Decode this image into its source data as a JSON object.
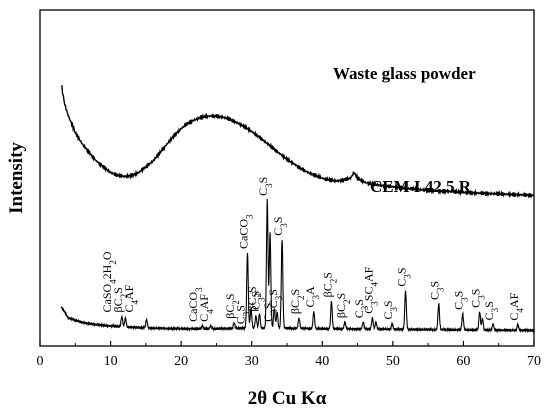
{
  "chart_data": {
    "type": "line",
    "xlabel": "2θ Cu Kα",
    "ylabel": "Intensity",
    "xlim": [
      0,
      70
    ],
    "xticks": [
      "0",
      "10",
      "20",
      "30",
      "40",
      "50",
      "60",
      "70"
    ],
    "y_tick_labels": "none",
    "colors": {
      "line": "#000000",
      "axis": "#000000",
      "background": "#ffffff"
    },
    "series": [
      {
        "name": "Waste glass powder",
        "profile": "amorphous hump",
        "x": [
          3,
          3.5,
          4,
          5,
          6,
          7,
          8,
          9,
          10,
          11,
          12,
          13,
          14,
          15,
          16,
          17,
          18,
          19,
          20,
          21,
          22,
          23,
          24,
          25,
          26,
          27,
          28,
          29,
          30,
          31,
          32,
          33,
          34,
          35,
          36,
          37,
          38,
          39,
          40,
          41,
          42,
          43,
          44,
          44.5,
          45,
          46,
          47,
          48,
          50,
          52,
          54,
          56,
          58,
          60,
          62,
          64,
          66,
          68,
          70
        ],
        "y": [
          4.4,
          4.05,
          3.85,
          3.55,
          3.35,
          3.2,
          3.05,
          2.95,
          2.85,
          2.8,
          2.78,
          2.8,
          2.85,
          2.95,
          3.05,
          3.2,
          3.35,
          3.5,
          3.62,
          3.72,
          3.78,
          3.82,
          3.84,
          3.84,
          3.82,
          3.78,
          3.72,
          3.65,
          3.57,
          3.48,
          3.38,
          3.28,
          3.18,
          3.08,
          3.0,
          2.92,
          2.85,
          2.8,
          2.75,
          2.72,
          2.7,
          2.72,
          2.75,
          2.85,
          2.75,
          2.68,
          2.65,
          2.63,
          2.6,
          2.57,
          2.55,
          2.53,
          2.52,
          2.5,
          2.49,
          2.48,
          2.47,
          2.46,
          2.45
        ]
      },
      {
        "name": "CEM I 42.5 R",
        "profile": "baseline with diffraction peaks",
        "baseline_x": [
          3,
          4,
          6,
          8,
          10,
          12,
          14,
          16,
          20,
          25,
          30,
          35,
          40,
          50,
          60,
          70
        ],
        "baseline_y": [
          0.5,
          0.3,
          0.22,
          0.18,
          0.16,
          0.14,
          0.13,
          0.12,
          0.11,
          0.11,
          0.12,
          0.12,
          0.11,
          0.1,
          0.09,
          0.08
        ],
        "peaks": [
          {
            "x": 11.6,
            "height": 0.18
          },
          {
            "x": 12.1,
            "height": 0.16
          },
          {
            "x": 15.1,
            "height": 0.15
          },
          {
            "x": 23.0,
            "height": 0.05
          },
          {
            "x": 24.2,
            "height": 0.05
          },
          {
            "x": 27.5,
            "height": 0.1
          },
          {
            "x": 29.4,
            "height": 1.32
          },
          {
            "x": 29.9,
            "height": 0.35
          },
          {
            "x": 30.6,
            "height": 0.22
          },
          {
            "x": 31.1,
            "height": 0.25
          },
          {
            "x": 32.2,
            "height": 2.25
          },
          {
            "x": 32.6,
            "height": 1.68
          },
          {
            "x": 33.2,
            "height": 0.35
          },
          {
            "x": 33.6,
            "height": 0.28
          },
          {
            "x": 34.3,
            "height": 1.55
          },
          {
            "x": 36.7,
            "height": 0.18
          },
          {
            "x": 38.8,
            "height": 0.3
          },
          {
            "x": 41.3,
            "height": 0.48
          },
          {
            "x": 43.2,
            "height": 0.12
          },
          {
            "x": 45.8,
            "height": 0.12
          },
          {
            "x": 47.1,
            "height": 0.2
          },
          {
            "x": 47.6,
            "height": 0.12
          },
          {
            "x": 49.9,
            "height": 0.1
          },
          {
            "x": 51.8,
            "height": 0.68
          },
          {
            "x": 56.5,
            "height": 0.45
          },
          {
            "x": 59.9,
            "height": 0.28
          },
          {
            "x": 62.3,
            "height": 0.32
          },
          {
            "x": 62.7,
            "height": 0.2
          },
          {
            "x": 64.2,
            "height": 0.1
          },
          {
            "x": 67.7,
            "height": 0.1
          }
        ]
      }
    ],
    "peak_annotations": [
      {
        "at": 11.6,
        "lines": [
          {
            "segs": [
              [
                "CaSO"
              ],
              [
                "4",
                "sub"
              ],
              [
                "2H"
              ],
              [
                "2",
                "sub"
              ],
              [
                "O"
              ]
            ]
          },
          {
            "segs": [
              [
                "βC"
              ],
              [
                "2",
                "sub"
              ],
              [
                "S"
              ]
            ]
          },
          {
            "segs": [
              [
                "C"
              ],
              [
                "4",
                "sub"
              ],
              [
                "AF"
              ]
            ]
          }
        ]
      },
      {
        "at": 23.0,
        "lines": [
          {
            "segs": [
              [
                "CaCO"
              ],
              [
                "3",
                "sub"
              ]
            ]
          },
          {
            "segs": [
              [
                "C"
              ],
              [
                "4",
                "sub"
              ],
              [
                "AF"
              ]
            ]
          }
        ]
      },
      {
        "at": 27.5,
        "lines": [
          {
            "segs": [
              [
                "βC"
              ],
              [
                "2",
                "sub"
              ],
              [
                "S"
              ]
            ]
          }
        ]
      },
      {
        "at": 29.0,
        "lines": [
          {
            "segs": [
              [
                "C"
              ],
              [
                "3",
                "sub"
              ],
              [
                "S"
              ]
            ]
          }
        ]
      },
      {
        "at": 29.4,
        "lines": [
          {
            "segs": [
              [
                "CaCO"
              ],
              [
                "3",
                "sub"
              ]
            ]
          }
        ]
      },
      {
        "at": 30.6,
        "lines": [
          {
            "segs": [
              [
                "βC"
              ],
              [
                "2",
                "sub"
              ],
              [
                "S"
              ]
            ]
          }
        ]
      },
      {
        "at": 31.1,
        "lines": [
          {
            "segs": [
              [
                "C"
              ],
              [
                "3",
                "sub"
              ],
              [
                "S"
              ]
            ]
          }
        ]
      },
      {
        "at": 32.2,
        "lines": [
          {
            "segs": [
              [
                "C"
              ],
              [
                "3",
                "sub"
              ],
              [
                "S"
              ]
            ]
          }
        ]
      },
      {
        "at": 32.9,
        "lines": [
          {
            "segs": [
              [
                "C"
              ],
              [
                "3",
                "sub"
              ],
              [
                "S"
              ]
            ]
          }
        ]
      },
      {
        "at": 33.6,
        "lines": [
          {
            "segs": [
              [
                "C"
              ],
              [
                "3",
                "sub"
              ],
              [
                "S"
              ]
            ]
          }
        ]
      },
      {
        "at": 34.3,
        "lines": [
          {
            "segs": [
              [
                "C"
              ],
              [
                "3",
                "sub"
              ],
              [
                "S"
              ]
            ]
          }
        ]
      },
      {
        "at": 36.7,
        "lines": [
          {
            "segs": [
              [
                "βC"
              ],
              [
                "2",
                "sub"
              ],
              [
                "S"
              ]
            ]
          }
        ]
      },
      {
        "at": 38.8,
        "lines": [
          {
            "segs": [
              [
                "C"
              ],
              [
                "3",
                "sub"
              ],
              [
                "A"
              ]
            ]
          }
        ]
      },
      {
        "at": 41.3,
        "lines": [
          {
            "segs": [
              [
                "βC"
              ],
              [
                "2",
                "sub"
              ],
              [
                "S"
              ]
            ]
          }
        ]
      },
      {
        "at": 43.2,
        "lines": [
          {
            "segs": [
              [
                "βC"
              ],
              [
                "2",
                "sub"
              ],
              [
                "S"
              ]
            ]
          }
        ]
      },
      {
        "at": 45.8,
        "lines": [
          {
            "segs": [
              [
                "C"
              ],
              [
                "3",
                "sub"
              ],
              [
                "S"
              ]
            ]
          }
        ]
      },
      {
        "at": 47.1,
        "lines": [
          {
            "segs": [
              [
                "C"
              ],
              [
                "3",
                "sub"
              ],
              [
                "S"
              ],
              [
                "C"
              ],
              [
                "4",
                "sub"
              ],
              [
                "AF"
              ]
            ]
          }
        ]
      },
      {
        "at": 49.9,
        "lines": [
          {
            "segs": [
              [
                "C"
              ],
              [
                "3",
                "sub"
              ],
              [
                "S"
              ]
            ]
          }
        ]
      },
      {
        "at": 51.8,
        "lines": [
          {
            "segs": [
              [
                "C"
              ],
              [
                "3",
                "sub"
              ],
              [
                "S"
              ]
            ]
          }
        ]
      },
      {
        "at": 56.5,
        "lines": [
          {
            "segs": [
              [
                "C"
              ],
              [
                "3",
                "sub"
              ],
              [
                "S"
              ]
            ]
          }
        ]
      },
      {
        "at": 59.9,
        "lines": [
          {
            "segs": [
              [
                "C"
              ],
              [
                "3",
                "sub"
              ],
              [
                "S"
              ]
            ]
          }
        ]
      },
      {
        "at": 62.3,
        "lines": [
          {
            "segs": [
              [
                "C"
              ],
              [
                "3",
                "sub"
              ],
              [
                "S"
              ]
            ]
          }
        ]
      },
      {
        "at": 64.2,
        "lines": [
          {
            "segs": [
              [
                "C"
              ],
              [
                "3",
                "sub"
              ],
              [
                "S"
              ]
            ]
          }
        ]
      },
      {
        "at": 67.7,
        "lines": [
          {
            "segs": [
              [
                "C"
              ],
              [
                "4",
                "sub"
              ],
              [
                "AF"
              ]
            ]
          }
        ]
      }
    ]
  }
}
